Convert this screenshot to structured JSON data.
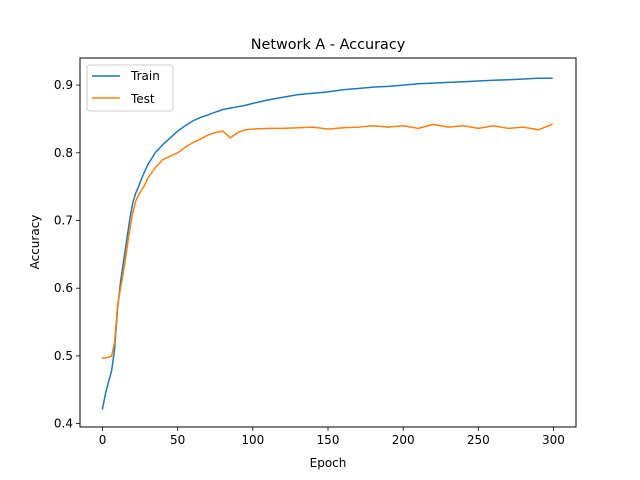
{
  "chart_data": {
    "type": "line",
    "title": "Network A - Accuracy",
    "xlabel": "Epoch",
    "ylabel": "Accuracy",
    "xlim": [
      -15,
      315
    ],
    "ylim": [
      0.395,
      0.94
    ],
    "xticks": [
      0,
      50,
      100,
      150,
      200,
      250,
      300
    ],
    "xtick_labels": [
      "0",
      "50",
      "100",
      "150",
      "200",
      "250",
      "300"
    ],
    "yticks": [
      0.4,
      0.5,
      0.6,
      0.7,
      0.8,
      0.9
    ],
    "ytick_labels": [
      "0.4",
      "0.5",
      "0.6",
      "0.7",
      "0.8",
      "0.9"
    ],
    "grid": false,
    "legend": "upper left",
    "x": [
      0,
      2,
      4,
      6,
      8,
      10,
      12,
      14,
      16,
      18,
      20,
      22,
      24,
      26,
      28,
      30,
      35,
      40,
      45,
      50,
      55,
      60,
      65,
      70,
      75,
      80,
      85,
      90,
      95,
      100,
      110,
      120,
      130,
      140,
      150,
      160,
      170,
      180,
      190,
      200,
      210,
      220,
      230,
      240,
      250,
      260,
      270,
      280,
      290,
      299
    ],
    "series": [
      {
        "name": "Train",
        "color": "#1f77b4",
        "values": [
          0.422,
          0.445,
          0.462,
          0.478,
          0.51,
          0.57,
          0.61,
          0.64,
          0.67,
          0.7,
          0.725,
          0.74,
          0.75,
          0.762,
          0.772,
          0.782,
          0.8,
          0.812,
          0.822,
          0.832,
          0.84,
          0.847,
          0.852,
          0.856,
          0.86,
          0.864,
          0.866,
          0.868,
          0.87,
          0.873,
          0.878,
          0.882,
          0.886,
          0.888,
          0.89,
          0.893,
          0.895,
          0.897,
          0.898,
          0.9,
          0.902,
          0.903,
          0.904,
          0.905,
          0.906,
          0.907,
          0.908,
          0.909,
          0.91,
          0.91
        ]
      },
      {
        "name": "Test",
        "color": "#ff7f0e",
        "values": [
          0.497,
          0.497,
          0.498,
          0.5,
          0.52,
          0.575,
          0.6,
          0.625,
          0.655,
          0.685,
          0.71,
          0.728,
          0.738,
          0.745,
          0.752,
          0.762,
          0.778,
          0.79,
          0.795,
          0.8,
          0.808,
          0.815,
          0.82,
          0.826,
          0.83,
          0.832,
          0.822,
          0.83,
          0.834,
          0.835,
          0.836,
          0.836,
          0.837,
          0.838,
          0.835,
          0.837,
          0.838,
          0.84,
          0.838,
          0.84,
          0.836,
          0.842,
          0.838,
          0.84,
          0.836,
          0.84,
          0.836,
          0.838,
          0.834,
          0.842
        ]
      }
    ]
  }
}
